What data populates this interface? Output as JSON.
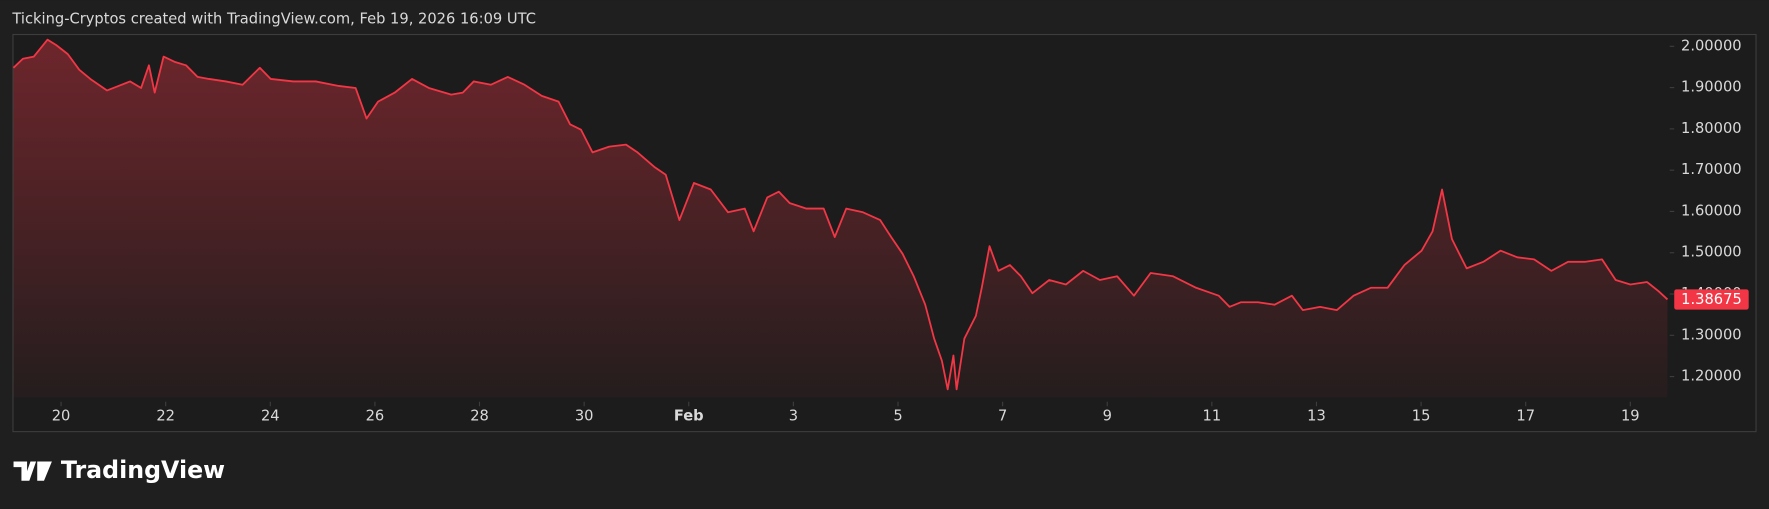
{
  "header": "Ticking-Cryptos created with TradingView.com, Feb 19, 2026 16:09 UTC",
  "logo_text": "TradingView",
  "chart_data": {
    "type": "area",
    "color": "#f23645",
    "x": [
      -0.91,
      -0.73,
      -0.52,
      -0.26,
      -0.09,
      0.13,
      0.35,
      0.56,
      0.88,
      1.1,
      1.32,
      1.53,
      1.68,
      1.79,
      1.96,
      2.18,
      2.39,
      2.61,
      2.83,
      3.15,
      3.47,
      3.8,
      4.01,
      4.44,
      4.87,
      5.31,
      5.63,
      5.84,
      6.06,
      6.38,
      6.71,
      7.03,
      7.46,
      7.68,
      7.89,
      8.22,
      8.54,
      8.86,
      9.19,
      9.51,
      9.73,
      9.94,
      10.16,
      10.48,
      10.8,
      11.02,
      11.34,
      11.56,
      11.82,
      12.1,
      12.42,
      12.75,
      13.07,
      13.24,
      13.5,
      13.72,
      13.93,
      14.25,
      14.58,
      14.79,
      15.01,
      15.33,
      15.66,
      15.87,
      16.09,
      16.3,
      16.52,
      16.69,
      16.84,
      16.95,
      17.06,
      17.12,
      17.27,
      17.49,
      17.6,
      17.75,
      17.92,
      18.14,
      18.35,
      18.57,
      18.89,
      19.21,
      19.54,
      19.86,
      20.19,
      20.51,
      20.83,
      21.26,
      21.7,
      22.13,
      22.34,
      22.56,
      22.88,
      23.2,
      23.53,
      23.74,
      24.07,
      24.39,
      24.71,
      25.04,
      25.36,
      25.68,
      26.01,
      26.22,
      26.4,
      26.59,
      26.87,
      27.19,
      27.52,
      27.84,
      28.16,
      28.49,
      28.81,
      29.13,
      29.46,
      29.72,
      30.0,
      30.32,
      30.54,
      30.71
    ],
    "values": [
      1.948,
      1.97,
      1.975,
      2.016,
      2.003,
      1.981,
      1.943,
      1.921,
      1.893,
      1.904,
      1.915,
      1.899,
      1.954,
      1.888,
      1.975,
      1.962,
      1.954,
      1.926,
      1.921,
      1.915,
      1.907,
      1.948,
      1.921,
      1.915,
      1.915,
      1.904,
      1.899,
      1.825,
      1.866,
      1.888,
      1.921,
      1.899,
      1.883,
      1.888,
      1.915,
      1.907,
      1.926,
      1.907,
      1.88,
      1.866,
      1.811,
      1.798,
      1.743,
      1.757,
      1.762,
      1.743,
      1.708,
      1.689,
      1.579,
      1.669,
      1.653,
      1.598,
      1.607,
      1.552,
      1.634,
      1.648,
      1.62,
      1.607,
      1.607,
      1.538,
      1.607,
      1.598,
      1.579,
      1.538,
      1.497,
      1.443,
      1.374,
      1.292,
      1.238,
      1.169,
      1.251,
      1.169,
      1.292,
      1.347,
      1.415,
      1.516,
      1.456,
      1.47,
      1.443,
      1.402,
      1.434,
      1.423,
      1.456,
      1.434,
      1.443,
      1.396,
      1.451,
      1.443,
      1.415,
      1.396,
      1.369,
      1.38,
      1.38,
      1.374,
      1.396,
      1.361,
      1.369,
      1.361,
      1.396,
      1.415,
      1.415,
      1.47,
      1.505,
      1.552,
      1.653,
      1.533,
      1.462,
      1.478,
      1.505,
      1.489,
      1.484,
      1.456,
      1.478,
      1.478,
      1.484,
      1.434,
      1.423,
      1.429,
      1.407,
      1.387
    ],
    "last_value": 1.38675,
    "xlim": [
      -0.93,
      30.71
    ],
    "ylim": [
      1.15,
      2.03
    ],
    "xticks": [
      {
        "value": 0,
        "label": "20"
      },
      {
        "value": 2,
        "label": "22"
      },
      {
        "value": 4,
        "label": "24"
      },
      {
        "value": 6,
        "label": "26"
      },
      {
        "value": 8,
        "label": "28"
      },
      {
        "value": 10,
        "label": "30"
      },
      {
        "value": 12,
        "label": "Feb"
      },
      {
        "value": 14,
        "label": "3"
      },
      {
        "value": 16,
        "label": "5"
      },
      {
        "value": 18,
        "label": "7"
      },
      {
        "value": 20,
        "label": "9"
      },
      {
        "value": 22,
        "label": "11"
      },
      {
        "value": 24,
        "label": "13"
      },
      {
        "value": 26,
        "label": "15"
      },
      {
        "value": 28,
        "label": "17"
      },
      {
        "value": 30,
        "label": "19"
      }
    ],
    "yticks": [
      {
        "value": 1.2,
        "label": "1.20000"
      },
      {
        "value": 1.3,
        "label": "1.30000"
      },
      {
        "value": 1.4,
        "label": "1.40000"
      },
      {
        "value": 1.5,
        "label": "1.50000"
      },
      {
        "value": 1.6,
        "label": "1.60000"
      },
      {
        "value": 1.7,
        "label": "1.70000"
      },
      {
        "value": 1.8,
        "label": "1.80000"
      },
      {
        "value": 1.9,
        "label": "1.90000"
      },
      {
        "value": 2.0,
        "label": "2.00000"
      }
    ]
  }
}
